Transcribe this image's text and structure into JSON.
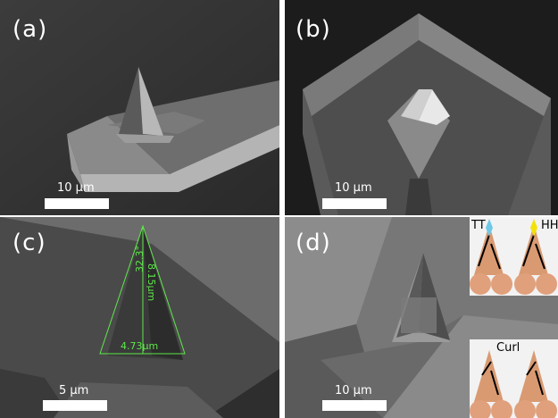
{
  "panels": {
    "a": {
      "label": "(a)",
      "scale": "10 µm"
    },
    "b": {
      "label": "(b)",
      "scale": "10 µm"
    },
    "c": {
      "label": "(c)",
      "scale": "5 µm",
      "angle": "32.3°",
      "height": "8.15µm",
      "width": "4.73µm"
    },
    "d": {
      "label": "(d)",
      "scale": "10 µm"
    }
  },
  "insets": {
    "tt": "TT",
    "hh": "HH",
    "curl": "Curl"
  },
  "colors": {
    "measure": "#5ee84a",
    "sphere": "#e0a07c",
    "tt_marker": "#6fc8e8",
    "hh_marker": "#f2e20a"
  }
}
